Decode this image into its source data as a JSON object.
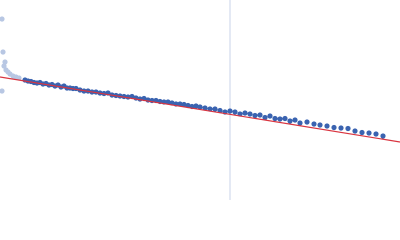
{
  "chart_data": {
    "type": "scatter",
    "xlim": [
      0,
      400
    ],
    "ylim": [
      0,
      200
    ],
    "vline": {
      "x": 230,
      "color": "#c9d3e8"
    },
    "series": [
      {
        "color": "#b8c7e3",
        "x": [
          2,
          3,
          5,
          4,
          6,
          8,
          10,
          13,
          16,
          19,
          2
        ],
        "values": [
          181,
          148,
          138,
          134,
          130,
          128,
          126,
          124,
          123,
          122,
          109
        ]
      },
      {
        "color": "#3a63b0",
        "x": [
          25,
          28,
          31,
          34,
          37,
          40,
          43,
          46,
          49,
          52,
          55,
          58,
          61,
          64,
          67,
          70,
          73,
          76,
          80,
          84,
          88,
          92,
          96,
          100,
          104,
          108,
          112,
          116,
          120,
          124,
          128,
          132,
          136,
          140,
          144,
          148,
          152,
          156,
          160,
          164,
          168,
          172,
          176,
          180,
          184,
          188,
          192,
          196,
          200,
          205,
          210,
          215,
          220,
          225,
          230,
          235,
          240,
          245,
          250,
          255,
          260,
          265,
          270,
          275,
          280,
          285,
          290,
          295,
          300,
          307,
          314,
          320,
          327,
          334,
          341,
          348,
          355,
          362,
          369,
          376,
          383
        ],
        "values": [
          120,
          119,
          118.5,
          117.5,
          117,
          117.5,
          116,
          116.5,
          115,
          115.5,
          114,
          115,
          113,
          114,
          112,
          112,
          111.5,
          111.5,
          110,
          109,
          109,
          108,
          108,
          107,
          106.5,
          107,
          105,
          104.5,
          104,
          103.5,
          103,
          103.5,
          102,
          101,
          101.5,
          100,
          99.5,
          99.5,
          98.5,
          98,
          98,
          97,
          96,
          96,
          95.5,
          94.5,
          93.5,
          94,
          93,
          92,
          91,
          91,
          89.5,
          88,
          89,
          88,
          86,
          87,
          86,
          84.5,
          85,
          82.5,
          84,
          81.5,
          81,
          81.5,
          79,
          80,
          77,
          78,
          76,
          75,
          74,
          72.5,
          72,
          71.5,
          69,
          67.5,
          67,
          66,
          64
        ]
      }
    ],
    "fit": {
      "color": "#d9343f",
      "x": [
        0,
        400
      ],
      "values": [
        123,
        58
      ]
    }
  }
}
